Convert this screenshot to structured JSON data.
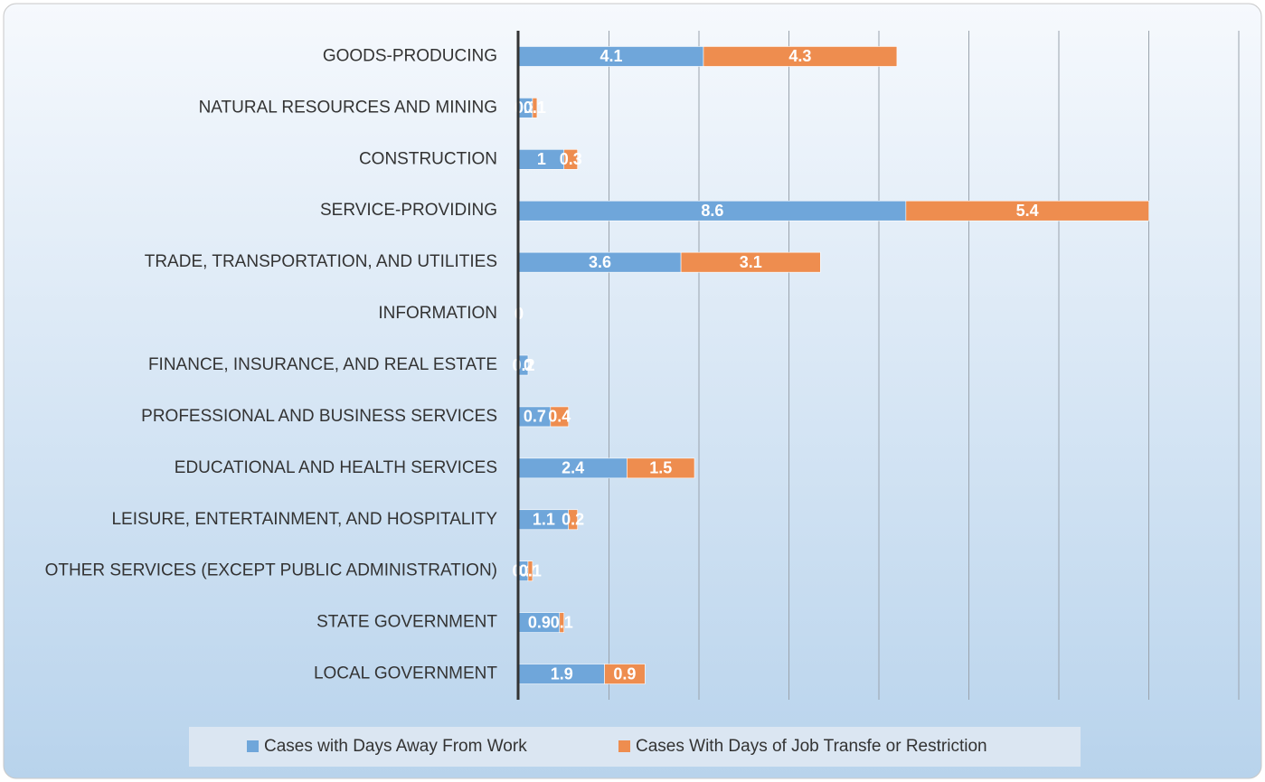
{
  "chart_data": {
    "type": "stacked-bar-horizontal",
    "categories": [
      "GOODS-PRODUCING",
      "NATURAL RESOURCES AND MINING",
      "CONSTRUCTION",
      "SERVICE-PROVIDING",
      "TRADE, TRANSPORTATION, AND UTILITIES",
      "INFORMATION",
      "FINANCE, INSURANCE, AND REAL ESTATE",
      "PROFESSIONAL AND BUSINESS SERVICES",
      "EDUCATIONAL AND HEALTH SERVICES",
      "LEISURE, ENTERTAINMENT, AND HOSPITALITY",
      "OTHER SERVICES (EXCEPT PUBLIC ADMINISTRATION)",
      "STATE GOVERNMENT",
      "LOCAL GOVERNMENT"
    ],
    "series": [
      {
        "name": "Cases with Days Away From Work",
        "color": "#6fa6da",
        "values": [
          4.1,
          0.3,
          1,
          8.6,
          3.6,
          0,
          0.2,
          0.7,
          2.4,
          1.1,
          0.2,
          0.9,
          1.9
        ]
      },
      {
        "name": "Cases With Days of Job Transfe or Restriction",
        "color": "#ee8d4f",
        "values": [
          4.3,
          0.1,
          0.3,
          5.4,
          3.1,
          0,
          0,
          0.4,
          1.5,
          0.2,
          0.1,
          0.1,
          0.9
        ]
      }
    ],
    "xlim": [
      0,
      16
    ],
    "xticks": [
      0,
      2,
      4,
      6,
      8,
      10,
      12,
      14,
      16
    ],
    "grid": true,
    "legend": "bottom"
  }
}
